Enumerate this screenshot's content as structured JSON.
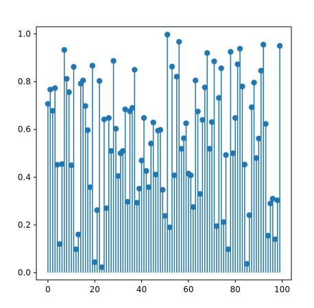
{
  "colors": {
    "series": "#1f77b4",
    "axes": "#000000",
    "background": "#ffffff"
  },
  "chart_data": {
    "type": "stem",
    "title": "",
    "xlabel": "",
    "ylabel": "",
    "xlim": [
      -4.95,
      103.95
    ],
    "ylim": [
      -0.03,
      1.03
    ],
    "grid": false,
    "legend": false,
    "x_ticks": [
      0,
      20,
      40,
      60,
      80,
      100
    ],
    "x_tick_labels": [
      "0",
      "20",
      "40",
      "60",
      "80",
      "100"
    ],
    "y_ticks": [
      0.0,
      0.2,
      0.4,
      0.6,
      0.8,
      1.0
    ],
    "y_tick_labels": [
      "0.0",
      "0.2",
      "0.4",
      "0.6",
      "0.8",
      "1.0"
    ],
    "baseline": 0,
    "series": [
      {
        "x": [
          0,
          1,
          2,
          3,
          4,
          5,
          6,
          7,
          8,
          9,
          10,
          11,
          12,
          13,
          14,
          15,
          16,
          17,
          18,
          19,
          20,
          21,
          22,
          23,
          24,
          25,
          26,
          27,
          28,
          29,
          30,
          31,
          32,
          33,
          34,
          35,
          36,
          37,
          38,
          39,
          40,
          41,
          42,
          43,
          44,
          45,
          46,
          47,
          48,
          49,
          50,
          51,
          52,
          53,
          54,
          55,
          56,
          57,
          58,
          59,
          60,
          61,
          62,
          63,
          64,
          65,
          66,
          67,
          68,
          69,
          70,
          71,
          72,
          73,
          74,
          75,
          76,
          77,
          78,
          79,
          80,
          81,
          82,
          83,
          84,
          85,
          86,
          87,
          88,
          89,
          90,
          91,
          92,
          93,
          94,
          95,
          96,
          97,
          98,
          99
        ],
        "values": [
          0.707,
          0.767,
          0.678,
          0.773,
          0.452,
          0.12,
          0.455,
          0.933,
          0.812,
          0.756,
          0.45,
          0.862,
          0.098,
          0.16,
          0.792,
          0.805,
          0.698,
          0.597,
          0.358,
          0.867,
          0.044,
          0.262,
          0.803,
          0.023,
          0.642,
          0.27,
          0.648,
          0.51,
          0.887,
          0.603,
          0.405,
          0.5,
          0.51,
          0.684,
          0.297,
          0.676,
          0.69,
          0.85,
          0.293,
          0.352,
          0.47,
          0.648,
          0.426,
          0.358,
          0.541,
          0.629,
          0.411,
          0.595,
          0.598,
          0.347,
          0.238,
          0.997,
          0.19,
          0.863,
          0.408,
          0.821,
          0.967,
          0.519,
          0.563,
          0.626,
          0.415,
          0.408,
          0.275,
          0.805,
          0.675,
          0.33,
          0.64,
          0.776,
          0.92,
          0.519,
          0.631,
          0.885,
          0.195,
          0.732,
          0.856,
          0.212,
          0.493,
          0.098,
          0.925,
          0.5,
          0.648,
          0.873,
          0.938,
          0.78,
          0.453,
          0.037,
          0.241,
          0.693,
          0.796,
          0.48,
          0.562,
          0.846,
          0.955,
          0.623,
          0.155,
          0.29,
          0.31,
          0.14,
          0.303,
          0.95
        ]
      }
    ]
  }
}
